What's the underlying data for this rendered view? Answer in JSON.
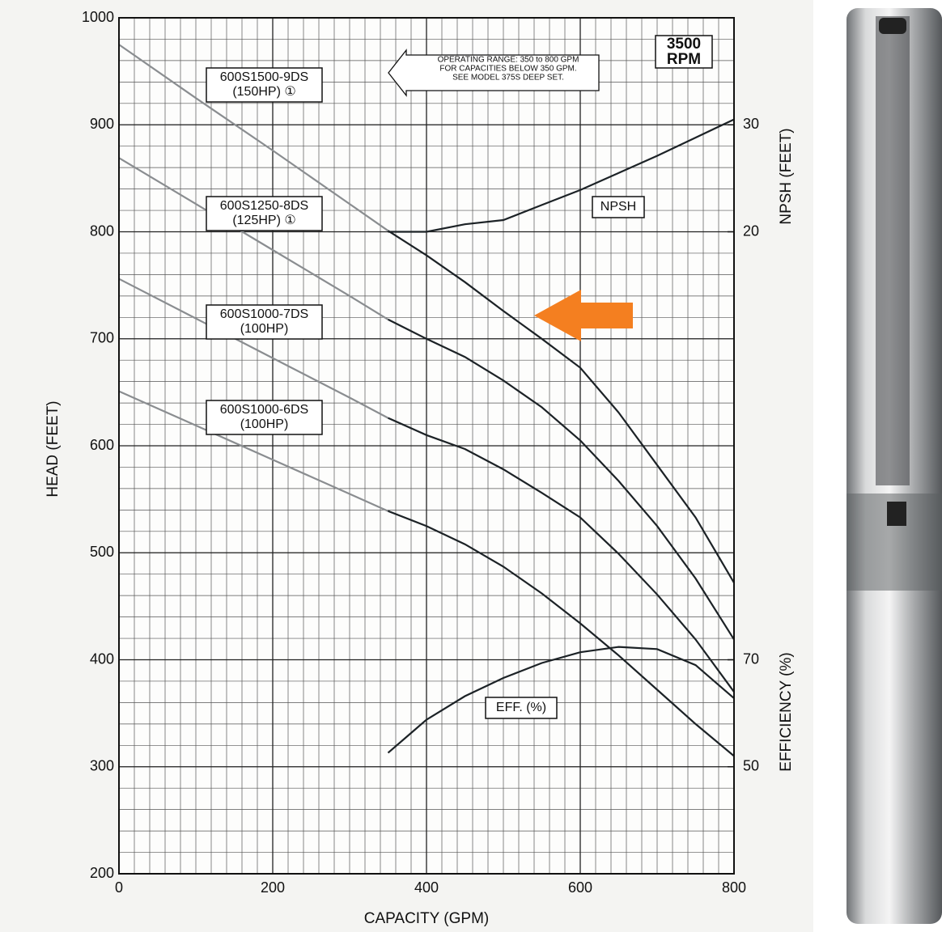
{
  "chart_data": {
    "type": "line",
    "xlabel": "CAPACITY (GPM)",
    "ylabel": "HEAD (FEET)",
    "y2label": "NPSH (FEET)",
    "y3label": "EFFICIENCY (%)",
    "speed": [
      "3500",
      "RPM"
    ],
    "note": [
      "OPERATING RANGE: 350 to 800 GPM",
      "FOR CAPACITIES BELOW 350 GPM.",
      "SEE MODEL 375S DEEP SET."
    ],
    "operating_from": 350,
    "xlim": [
      0,
      800
    ],
    "xticks": [
      0,
      200,
      400,
      600,
      800
    ],
    "ylim": [
      200,
      1000
    ],
    "yticks": [
      200,
      300,
      400,
      500,
      600,
      700,
      800,
      900,
      1000
    ],
    "y2lim": [
      -40,
      40
    ],
    "y2ticks": [
      20,
      30
    ],
    "y3lim": [
      30,
      190
    ],
    "y3ticks": [
      50,
      70
    ],
    "grid": true,
    "minor_grid_step": [
      20,
      20
    ],
    "x": [
      0,
      100,
      200,
      300,
      350,
      400,
      450,
      500,
      550,
      600,
      650,
      700,
      750,
      800
    ],
    "series": [
      {
        "name": "600S1500-9DS",
        "rating": "(150HP) ①",
        "color": "#1c2226",
        "outside_color": "#8a8d90",
        "values": [
          975,
          925,
          876,
          826,
          801,
          778,
          753,
          726,
          700,
          673,
          631,
          582,
          533,
          472
        ]
      },
      {
        "name": "600S1250-8DS",
        "rating": "(125HP) ①",
        "color": "#1c2226",
        "outside_color": "#8a8d90",
        "values": [
          869,
          826,
          783,
          740,
          718,
          700,
          683,
          661,
          636,
          605,
          567,
          525,
          476,
          419
        ]
      },
      {
        "name": "600S1000-7DS",
        "rating": "(100HP)",
        "color": "#1c2226",
        "outside_color": "#8a8d90",
        "values": [
          756,
          719,
          682,
          645,
          626,
          610,
          597,
          578,
          556,
          533,
          499,
          461,
          419,
          370
        ]
      },
      {
        "name": "600S1000-6DS",
        "rating": "(100HP)",
        "color": "#1c2226",
        "outside_color": "#8a8d90",
        "values": [
          651,
          619,
          587,
          555,
          539,
          525,
          508,
          487,
          462,
          434,
          404,
          372,
          340,
          310
        ]
      },
      {
        "name": "NPSH",
        "axis": "y2",
        "color": "#1c2226",
        "values": [
          null,
          null,
          null,
          null,
          20,
          20,
          20.7,
          21.1,
          22.5,
          23.9,
          25.5,
          27.1,
          28.8,
          30.5
        ]
      },
      {
        "name": "EFF. (%)",
        "axis": "y3",
        "color": "#1c2226",
        "values": [
          null,
          null,
          null,
          null,
          52.6,
          58.8,
          63.2,
          66.6,
          69.4,
          71.4,
          72.4,
          72,
          69,
          62.8
        ]
      }
    ]
  }
}
